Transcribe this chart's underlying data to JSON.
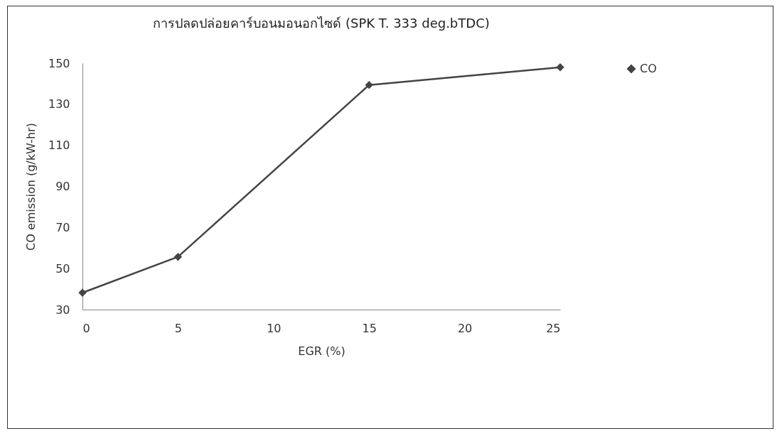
{
  "chart_data": {
    "type": "line",
    "title": "การปลดปล่อยคาร์บอนมอนอกไซด์ (SPK T. 333 deg.bTDC)",
    "xlabel": "EGR (%)",
    "ylabel": "CO emission (g/kW-hr)",
    "x": [
      0,
      5,
      15,
      25
    ],
    "series": [
      {
        "name": "CO",
        "color": "#444444",
        "values": [
          38.2,
          55.7,
          139.4,
          148
        ]
      }
    ],
    "xlim": [
      0,
      25
    ],
    "xticks": [
      0,
      5,
      10,
      15,
      20,
      25
    ],
    "ylim": [
      30,
      150
    ],
    "yticks": [
      30,
      50,
      70,
      90,
      110,
      130,
      150
    ],
    "grid": false,
    "legend": "right",
    "marker": "diamond",
    "line_style": "solid"
  }
}
